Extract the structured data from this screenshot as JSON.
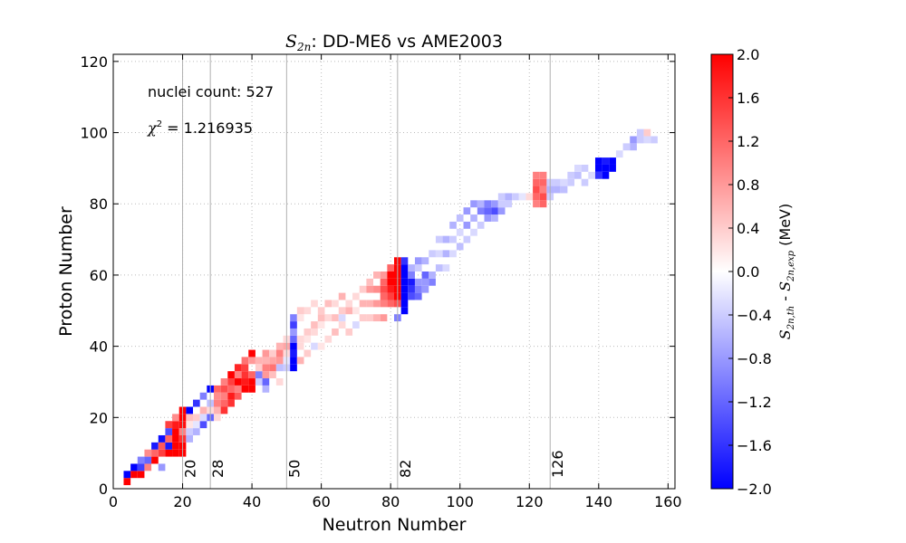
{
  "chart_data": {
    "type": "heatmap",
    "title_symbol": "S",
    "title_symbol_sub": "2n",
    "title_rest": "DD-MEδ vs AME2003",
    "xlabel": "Neutron Number",
    "ylabel": "Proton Number",
    "xlim": [
      0,
      162
    ],
    "ylim": [
      0,
      122
    ],
    "xticks": [
      0,
      20,
      40,
      60,
      80,
      100,
      120,
      140,
      160
    ],
    "yticks": [
      0,
      20,
      40,
      60,
      80,
      100,
      120
    ],
    "grid": "dotted",
    "annotations": {
      "count_label": "nuclei count: 527",
      "chi_symbol": "χ",
      "chi_sup": "2",
      "chi_value": " = 1.216935"
    },
    "magic_numbers": [
      20,
      28,
      50,
      82,
      126
    ],
    "colorbar": {
      "min": -2.0,
      "max": 2.0,
      "ticks": [
        "2.0",
        "1.6",
        "1.2",
        "0.8",
        "0.4",
        "0.0",
        "−0.4",
        "−0.8",
        "−1.2",
        "−1.6",
        "−2.0"
      ],
      "label_a": "S",
      "label_a_sub": "2n,th",
      "label_mid": " - ",
      "label_b": "S",
      "label_b_sub": "2n,exp",
      "label_unit": " (MeV)",
      "colormap": "bwr"
    },
    "nuclei_count": 527,
    "chi_squared": 1.216935,
    "cells": [
      [
        4,
        2,
        2.0
      ],
      [
        4,
        4,
        -2.0
      ],
      [
        6,
        4,
        2.0
      ],
      [
        6,
        6,
        -2.0
      ],
      [
        8,
        4,
        2.0
      ],
      [
        8,
        6,
        -1.5
      ],
      [
        8,
        8,
        -1.0
      ],
      [
        10,
        6,
        1.0
      ],
      [
        10,
        8,
        -1.2
      ],
      [
        10,
        10,
        0.9
      ],
      [
        12,
        8,
        2.0
      ],
      [
        12,
        10,
        1.2
      ],
      [
        12,
        12,
        -1.8
      ],
      [
        14,
        6,
        -0.8
      ],
      [
        14,
        10,
        1.5
      ],
      [
        14,
        12,
        1.3
      ],
      [
        14,
        14,
        -1.9
      ],
      [
        16,
        10,
        2.0
      ],
      [
        16,
        12,
        -1.8
      ],
      [
        16,
        14,
        1.2
      ],
      [
        16,
        16,
        -1.4
      ],
      [
        16,
        18,
        1.5
      ],
      [
        18,
        10,
        2.0
      ],
      [
        18,
        12,
        2.0
      ],
      [
        18,
        14,
        2.0
      ],
      [
        18,
        16,
        2.0
      ],
      [
        18,
        18,
        1.8
      ],
      [
        18,
        20,
        0.9
      ],
      [
        20,
        10,
        2.0
      ],
      [
        20,
        12,
        2.0
      ],
      [
        20,
        14,
        1.6
      ],
      [
        20,
        16,
        1.0
      ],
      [
        20,
        18,
        1.9
      ],
      [
        20,
        20,
        2.0
      ],
      [
        20,
        22,
        2.0
      ],
      [
        22,
        14,
        -0.6
      ],
      [
        22,
        16,
        -0.4
      ],
      [
        22,
        18,
        0.2
      ],
      [
        22,
        20,
        0.5
      ],
      [
        22,
        22,
        -2.0
      ],
      [
        24,
        16,
        -0.6
      ],
      [
        24,
        18,
        -0.2
      ],
      [
        24,
        20,
        0.4
      ],
      [
        24,
        24,
        -1.6
      ],
      [
        26,
        18,
        -1.4
      ],
      [
        26,
        20,
        -0.3
      ],
      [
        26,
        22,
        0.6
      ],
      [
        26,
        26,
        -1.0
      ],
      [
        28,
        20,
        -1.2
      ],
      [
        28,
        22,
        0.3
      ],
      [
        28,
        24,
        -0.5
      ],
      [
        28,
        28,
        -2.0
      ],
      [
        30,
        20,
        0.3
      ],
      [
        30,
        22,
        0.6
      ],
      [
        30,
        24,
        1.0
      ],
      [
        30,
        26,
        0.9
      ],
      [
        30,
        28,
        1.2
      ],
      [
        32,
        22,
        1.6
      ],
      [
        32,
        24,
        1.2
      ],
      [
        32,
        26,
        1.0
      ],
      [
        32,
        28,
        1.4
      ],
      [
        32,
        30,
        1.0
      ],
      [
        34,
        24,
        1.6
      ],
      [
        34,
        26,
        1.8
      ],
      [
        34,
        28,
        1.2
      ],
      [
        34,
        30,
        1.5
      ],
      [
        34,
        32,
        2.0
      ],
      [
        36,
        26,
        1.3
      ],
      [
        36,
        28,
        1.0
      ],
      [
        36,
        30,
        2.0
      ],
      [
        36,
        32,
        1.0
      ],
      [
        36,
        34,
        1.7
      ],
      [
        38,
        28,
        2.0
      ],
      [
        38,
        30,
        1.8
      ],
      [
        38,
        32,
        1.6
      ],
      [
        38,
        34,
        1.5
      ],
      [
        38,
        36,
        1.1
      ],
      [
        40,
        28,
        2.0
      ],
      [
        40,
        30,
        2.0
      ],
      [
        40,
        32,
        1.2
      ],
      [
        40,
        36,
        0.8
      ],
      [
        40,
        38,
        2.0
      ],
      [
        42,
        30,
        -0.4
      ],
      [
        42,
        32,
        -1.0
      ],
      [
        42,
        34,
        0.4
      ],
      [
        42,
        36,
        0.6
      ],
      [
        44,
        28,
        -0.6
      ],
      [
        44,
        30,
        -1.2
      ],
      [
        44,
        32,
        0.8
      ],
      [
        44,
        34,
        1.0
      ],
      [
        44,
        36,
        0.6
      ],
      [
        44,
        38,
        0.8
      ],
      [
        46,
        32,
        0.5
      ],
      [
        46,
        34,
        1.1
      ],
      [
        46,
        36,
        0.7
      ],
      [
        46,
        38,
        0.4
      ],
      [
        48,
        30,
        0.3
      ],
      [
        48,
        34,
        -0.5
      ],
      [
        48,
        36,
        0.8
      ],
      [
        48,
        38,
        1.0
      ],
      [
        48,
        40,
        0.6
      ],
      [
        50,
        34,
        -0.4
      ],
      [
        50,
        36,
        -0.2
      ],
      [
        50,
        38,
        0.3
      ],
      [
        50,
        40,
        0.7
      ],
      [
        50,
        42,
        0.3
      ],
      [
        52,
        34,
        -2.0
      ],
      [
        52,
        36,
        -2.0
      ],
      [
        52,
        38,
        -1.8
      ],
      [
        52,
        40,
        -2.0
      ],
      [
        52,
        42,
        -1.2
      ],
      [
        52,
        44,
        -0.8
      ],
      [
        52,
        46,
        -1.5
      ],
      [
        52,
        48,
        -1.0
      ],
      [
        54,
        36,
        0.6
      ],
      [
        54,
        40,
        0.3
      ],
      [
        54,
        42,
        0.3
      ],
      [
        54,
        48,
        0.2
      ],
      [
        54,
        50,
        0.4
      ],
      [
        56,
        38,
        0.4
      ],
      [
        56,
        42,
        0.2
      ],
      [
        56,
        44,
        0.4
      ],
      [
        56,
        50,
        0.3
      ],
      [
        58,
        40,
        -0.3
      ],
      [
        58,
        44,
        0.3
      ],
      [
        58,
        46,
        0.5
      ],
      [
        58,
        52,
        0.3
      ],
      [
        60,
        40,
        0.2
      ],
      [
        60,
        46,
        0.2
      ],
      [
        60,
        48,
        0.5
      ],
      [
        60,
        50,
        0.4
      ],
      [
        62,
        42,
        0.3
      ],
      [
        62,
        48,
        0.3
      ],
      [
        62,
        52,
        0.5
      ],
      [
        64,
        44,
        0.5
      ],
      [
        64,
        48,
        0.5
      ],
      [
        64,
        52,
        0.3
      ],
      [
        66,
        46,
        0.3
      ],
      [
        66,
        48,
        -0.3
      ],
      [
        66,
        50,
        0.4
      ],
      [
        66,
        54,
        0.6
      ],
      [
        68,
        44,
        0.4
      ],
      [
        68,
        50,
        0.6
      ],
      [
        68,
        52,
        0.3
      ],
      [
        70,
        46,
        -0.3
      ],
      [
        70,
        50,
        0.2
      ],
      [
        70,
        54,
        0.3
      ],
      [
        72,
        48,
        0.4
      ],
      [
        72,
        52,
        0.6
      ],
      [
        72,
        56,
        0.4
      ],
      [
        74,
        48,
        0.4
      ],
      [
        74,
        52,
        0.6
      ],
      [
        74,
        56,
        0.8
      ],
      [
        74,
        58,
        0.5
      ],
      [
        76,
        48,
        0.6
      ],
      [
        76,
        52,
        0.8
      ],
      [
        76,
        56,
        0.9
      ],
      [
        76,
        60,
        0.6
      ],
      [
        78,
        48,
        0.8
      ],
      [
        78,
        52,
        1.0
      ],
      [
        78,
        54,
        1.2
      ],
      [
        78,
        56,
        1.4
      ],
      [
        78,
        58,
        1.2
      ],
      [
        78,
        60,
        0.8
      ],
      [
        80,
        52,
        1.2
      ],
      [
        80,
        54,
        1.5
      ],
      [
        80,
        56,
        1.8
      ],
      [
        80,
        58,
        2.0
      ],
      [
        80,
        60,
        2.0
      ],
      [
        80,
        62,
        1.2
      ],
      [
        82,
        48,
        -1.0
      ],
      [
        82,
        52,
        1.4
      ],
      [
        82,
        54,
        2.0
      ],
      [
        82,
        56,
        2.0
      ],
      [
        82,
        58,
        2.0
      ],
      [
        82,
        60,
        2.0
      ],
      [
        82,
        62,
        2.0
      ],
      [
        82,
        64,
        2.0
      ],
      [
        84,
        50,
        -2.0
      ],
      [
        84,
        52,
        -2.0
      ],
      [
        84,
        54,
        -2.0
      ],
      [
        84,
        56,
        -2.0
      ],
      [
        84,
        58,
        -2.0
      ],
      [
        84,
        60,
        -2.0
      ],
      [
        84,
        62,
        -2.0
      ],
      [
        84,
        64,
        -1.6
      ],
      [
        86,
        54,
        -1.4
      ],
      [
        86,
        56,
        -1.6
      ],
      [
        86,
        58,
        -1.8
      ],
      [
        86,
        60,
        -1.0
      ],
      [
        86,
        62,
        -0.6
      ],
      [
        88,
        54,
        -1.2
      ],
      [
        88,
        56,
        -1.0
      ],
      [
        88,
        58,
        -0.8
      ],
      [
        88,
        62,
        -0.4
      ],
      [
        88,
        64,
        -0.8
      ],
      [
        90,
        56,
        -0.8
      ],
      [
        90,
        58,
        -0.8
      ],
      [
        90,
        60,
        -1.2
      ],
      [
        90,
        64,
        -0.6
      ],
      [
        92,
        58,
        -1.0
      ],
      [
        92,
        60,
        -0.6
      ],
      [
        92,
        66,
        -0.4
      ],
      [
        94,
        62,
        -0.5
      ],
      [
        94,
        66,
        -0.3
      ],
      [
        94,
        70,
        -0.4
      ],
      [
        96,
        62,
        -0.3
      ],
      [
        96,
        66,
        -0.6
      ],
      [
        96,
        70,
        -0.6
      ],
      [
        98,
        66,
        -0.3
      ],
      [
        98,
        70,
        -0.4
      ],
      [
        98,
        74,
        -0.6
      ],
      [
        100,
        68,
        -0.5
      ],
      [
        100,
        72,
        -0.3
      ],
      [
        100,
        76,
        -0.5
      ],
      [
        102,
        70,
        -0.4
      ],
      [
        102,
        74,
        -0.8
      ],
      [
        102,
        78,
        -0.8
      ],
      [
        104,
        72,
        -0.3
      ],
      [
        104,
        76,
        -0.6
      ],
      [
        104,
        80,
        -0.8
      ],
      [
        106,
        74,
        -0.4
      ],
      [
        106,
        78,
        -1.0
      ],
      [
        106,
        80,
        -0.6
      ],
      [
        108,
        76,
        -0.8
      ],
      [
        108,
        78,
        -1.2
      ],
      [
        108,
        80,
        -1.0
      ],
      [
        110,
        76,
        -0.6
      ],
      [
        110,
        78,
        -1.4
      ],
      [
        110,
        80,
        -0.8
      ],
      [
        112,
        78,
        -0.8
      ],
      [
        112,
        80,
        -0.4
      ],
      [
        112,
        82,
        -0.4
      ],
      [
        114,
        80,
        -0.4
      ],
      [
        114,
        82,
        -0.6
      ],
      [
        116,
        82,
        -0.4
      ],
      [
        118,
        82,
        -0.2
      ],
      [
        120,
        82,
        0.3
      ],
      [
        122,
        80,
        1.0
      ],
      [
        122,
        82,
        1.2
      ],
      [
        122,
        84,
        1.4
      ],
      [
        122,
        86,
        1.2
      ],
      [
        122,
        88,
        1.0
      ],
      [
        124,
        80,
        1.2
      ],
      [
        124,
        82,
        1.4
      ],
      [
        124,
        84,
        1.0
      ],
      [
        124,
        86,
        1.2
      ],
      [
        124,
        88,
        1.0
      ],
      [
        126,
        82,
        -0.4
      ],
      [
        126,
        84,
        -0.6
      ],
      [
        126,
        86,
        -0.4
      ],
      [
        128,
        84,
        -0.6
      ],
      [
        128,
        86,
        -0.4
      ],
      [
        130,
        84,
        -0.5
      ],
      [
        130,
        86,
        -0.3
      ],
      [
        132,
        86,
        -0.4
      ],
      [
        132,
        88,
        -0.4
      ],
      [
        134,
        88,
        -0.5
      ],
      [
        134,
        90,
        -0.3
      ],
      [
        136,
        86,
        -0.4
      ],
      [
        136,
        90,
        -0.4
      ],
      [
        138,
        88,
        -0.3
      ],
      [
        140,
        88,
        -1.6
      ],
      [
        140,
        90,
        -2.0
      ],
      [
        140,
        92,
        -2.0
      ],
      [
        142,
        88,
        -2.0
      ],
      [
        142,
        90,
        -2.0
      ],
      [
        142,
        92,
        -1.8
      ],
      [
        144,
        90,
        -2.0
      ],
      [
        144,
        92,
        -2.0
      ],
      [
        146,
        94,
        -0.3
      ],
      [
        148,
        96,
        -0.4
      ],
      [
        150,
        96,
        -0.6
      ],
      [
        150,
        98,
        -0.8
      ],
      [
        152,
        98,
        -0.4
      ],
      [
        152,
        100,
        -0.4
      ],
      [
        154,
        100,
        0.4
      ],
      [
        154,
        98,
        -0.3
      ],
      [
        156,
        98,
        -0.4
      ]
    ]
  }
}
